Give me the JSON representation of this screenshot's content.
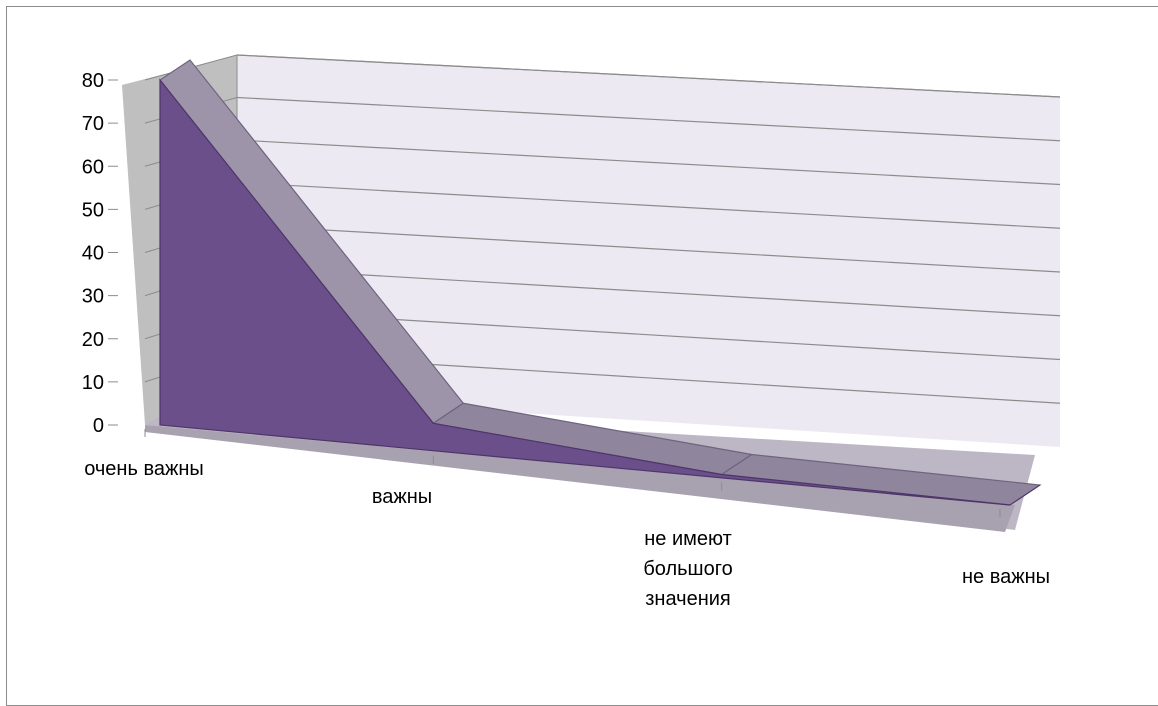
{
  "chart_data": {
    "type": "area",
    "is_3d": true,
    "categories": [
      [
        "очень важны"
      ],
      [
        "важны"
      ],
      [
        "не имеют",
        "большого",
        "значения"
      ],
      [
        "не важны"
      ]
    ],
    "series": [
      {
        "values": [
          80,
          7,
          1,
          0
        ],
        "color": "#6b4f8a"
      }
    ],
    "ylim": [
      0,
      80
    ],
    "yticks": [
      "0",
      "10",
      "20",
      "30",
      "40",
      "50",
      "60",
      "70",
      "80"
    ],
    "grid": true,
    "legend": "none",
    "title": "",
    "xlabel": "",
    "ylabel": ""
  }
}
